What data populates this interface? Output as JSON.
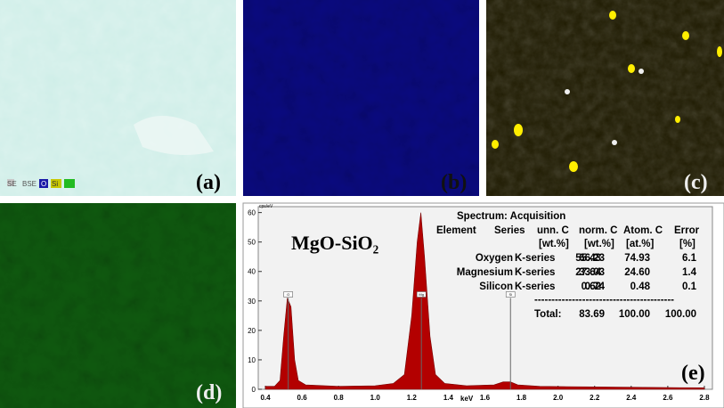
{
  "panels": {
    "a": {
      "label": "(a)",
      "legend": [
        "SE",
        "BSE",
        "O",
        "Si"
      ]
    },
    "b": {
      "label": "(b)"
    },
    "c": {
      "label": "(c)"
    },
    "d": {
      "label": "(d)"
    },
    "e": {
      "label": "(e)"
    }
  },
  "chart_data": {
    "type": "area",
    "title": "MgO-SiO₂",
    "ylabel": "cps/eV",
    "xlabel": "keV",
    "color": "#b30000",
    "x": [
      0.4,
      0.45,
      0.48,
      0.5,
      0.52,
      0.54,
      0.56,
      0.58,
      0.62,
      0.8,
      1.0,
      1.1,
      1.16,
      1.2,
      1.23,
      1.25,
      1.27,
      1.3,
      1.33,
      1.38,
      1.5,
      1.65,
      1.7,
      1.74,
      1.78,
      1.9,
      2.2,
      2.6,
      2.8
    ],
    "values": [
      1,
      1,
      3,
      18,
      31,
      28,
      10,
      3,
      1.5,
      1,
      1.2,
      2,
      5,
      25,
      50,
      60,
      45,
      18,
      5,
      2,
      1.2,
      1.5,
      2.5,
      2.5,
      1.5,
      1,
      0.8,
      0.6,
      0.5
    ],
    "annotations": [
      {
        "label": "O",
        "x": 0.525,
        "y": 31
      },
      {
        "label": "Mg",
        "x": 1.253,
        "y": 31
      },
      {
        "label": "Si",
        "x": 1.74,
        "y": 31
      }
    ],
    "xlim": [
      0.361,
      2.844
    ],
    "ylim": [
      0,
      62
    ],
    "xticks": [
      0.4,
      0.6,
      0.8,
      {
        "value": 1,
        "label": "1.0"
      },
      1.2,
      1.4,
      1.6,
      1.8,
      {
        "value": 2,
        "label": "2.0"
      },
      2.2,
      2.4,
      2.6,
      2.8
    ],
    "yticks": [
      0,
      10,
      20,
      30,
      40,
      50,
      60
    ]
  },
  "table": {
    "title": "Spectrum: Acquisition",
    "header": [
      "Element",
      "Series",
      "unn. C",
      "norm. C",
      "Atom. C",
      "Error"
    ],
    "units": [
      "[wt.%]",
      "[wt.%]",
      "[at.%]",
      "[%]"
    ],
    "rows": [
      [
        "Oxygen",
        "K-series",
        "55.43",
        "66.23",
        "74.93",
        "6.1"
      ],
      [
        "Magnesium",
        "K-series",
        "27.64",
        "33.03",
        "24.60",
        "1.4"
      ],
      [
        "Silicon",
        "K-series",
        "0.62",
        "0.74",
        "0.48",
        "0.1"
      ]
    ],
    "separator": "-----------------------------------------",
    "total": [
      "Total:",
      "83.69",
      "100.00",
      "100.00"
    ]
  }
}
